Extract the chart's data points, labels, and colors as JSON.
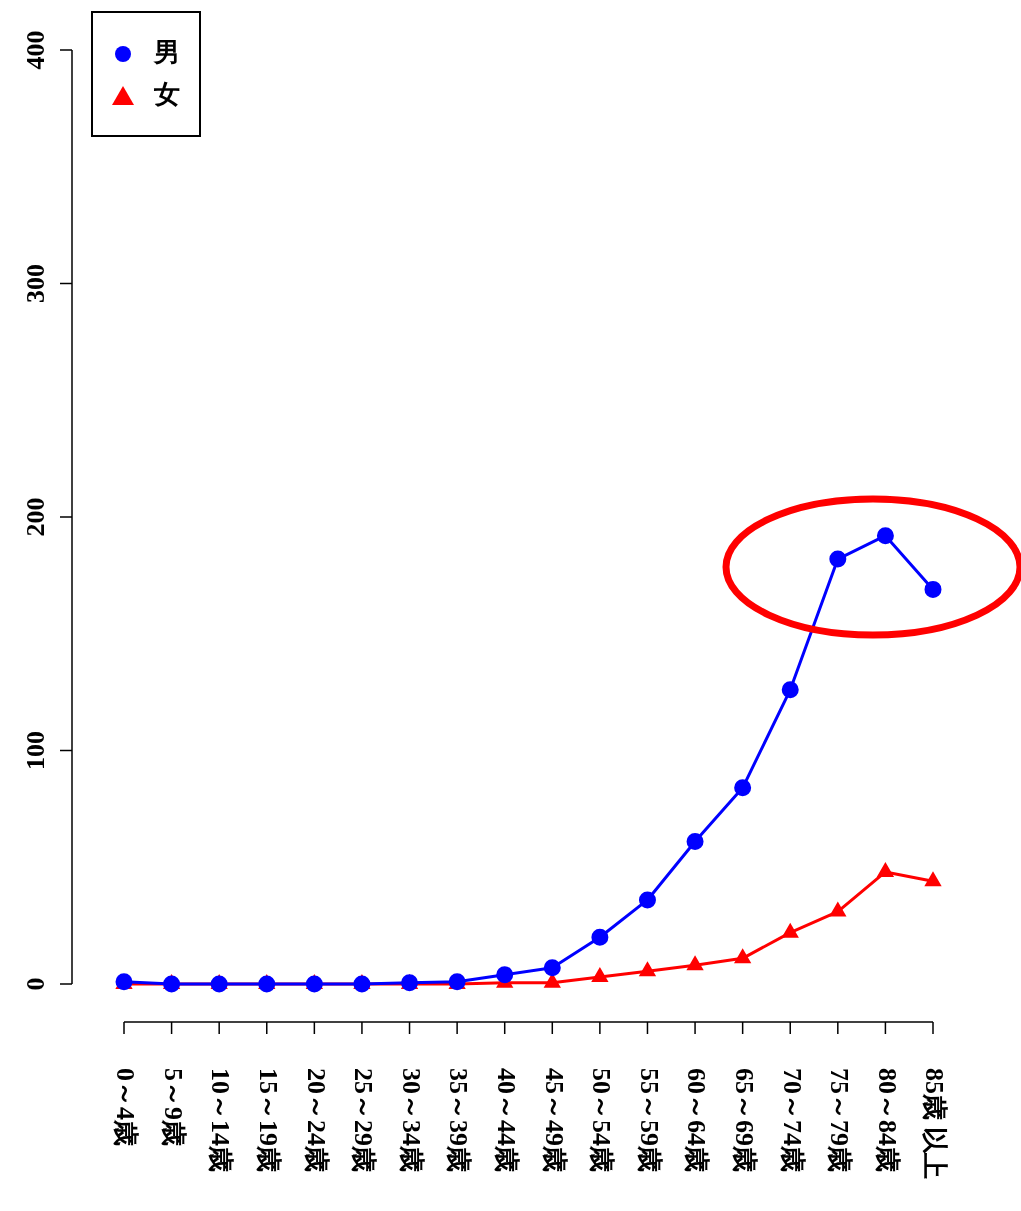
{
  "chart_data": {
    "type": "line",
    "categories": [
      "0～4歳",
      "5～9歳",
      "10～14歳",
      "15～19歳",
      "20～24歳",
      "25～29歳",
      "30～34歳",
      "35～39歳",
      "40～44歳",
      "45～49歳",
      "50～54歳",
      "55～59歳",
      "60～64歳",
      "65～69歳",
      "70～74歳",
      "75～79歳",
      "80～84歳",
      "85歳 以上"
    ],
    "series": [
      {
        "name": "男",
        "color": "#0000ff",
        "marker": "circle",
        "values": [
          1,
          0,
          0,
          0,
          0,
          0,
          0.5,
          1,
          4,
          7,
          20,
          36,
          61,
          84,
          126,
          182,
          192,
          169
        ]
      },
      {
        "name": "女",
        "color": "#ff0000",
        "marker": "triangle",
        "values": [
          0,
          0,
          0,
          0,
          0,
          0,
          0,
          0,
          0.5,
          0.5,
          3,
          5.5,
          8,
          11,
          22,
          31,
          48,
          44
        ]
      }
    ],
    "ylim": [
      0,
      400
    ],
    "yticks": [
      0,
      100,
      200,
      300,
      400
    ],
    "legend": "top left",
    "line_style": "solid"
  }
}
